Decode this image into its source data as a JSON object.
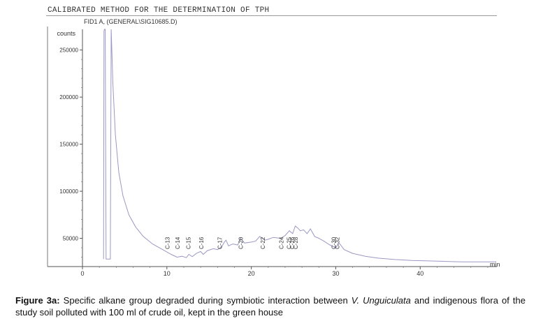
{
  "title": "CALIBRATED METHOD FOR THE DETERMINATION OF TPH",
  "chart_data": {
    "type": "line",
    "detector_label": "FID1 A,  (GENERAL\\SIG10685.D)",
    "ylabel": "counts",
    "xlabel": "min",
    "xlim": [
      0,
      49
    ],
    "ylim": [
      20000,
      272000
    ],
    "y_ticks": [
      50000,
      100000,
      150000,
      200000,
      250000
    ],
    "y_tick_labels": [
      "50000",
      "100000",
      "150000",
      "200000",
      "250000"
    ],
    "x_ticks": [
      0,
      10,
      20,
      30,
      40
    ],
    "x_tick_labels": [
      "0",
      "10",
      "20",
      "30",
      "40"
    ],
    "series": [
      {
        "name": "FID1 A",
        "x": [
          2.5,
          2.55,
          2.6,
          2.7,
          2.8,
          3.3,
          3.4,
          3.6,
          3.9,
          4.3,
          4.8,
          5.5,
          6.3,
          7.2,
          8.3,
          9.5,
          10.5,
          11.2,
          11.8,
          12.3,
          12.6,
          13.0,
          13.5,
          14.0,
          14.3,
          14.8,
          15.5,
          16.0,
          16.5,
          16.8,
          17.0,
          17.3,
          17.8,
          18.4,
          18.7,
          19.2,
          20.0,
          20.5,
          21.0,
          21.6,
          22.0,
          22.6,
          23.5,
          24.0,
          24.5,
          24.9,
          25.2,
          25.5,
          25.8,
          26.2,
          26.6,
          27.0,
          27.5,
          28.0,
          28.6,
          29.3,
          30.0,
          30.4,
          31.0,
          32.0,
          33.5,
          35.0,
          37.0,
          39.0,
          41.0,
          43.0,
          45.0,
          47.0,
          49.0
        ],
        "y": [
          28000,
          270000,
          272000,
          272000,
          28000,
          28000,
          272000,
          215000,
          160000,
          120000,
          95000,
          75000,
          62000,
          52000,
          44000,
          38000,
          33000,
          30000,
          31000,
          29500,
          33000,
          30500,
          34000,
          36000,
          33000,
          37000,
          39000,
          38000,
          41000,
          46000,
          48000,
          42000,
          44000,
          43000,
          50000,
          45000,
          46000,
          47000,
          52000,
          48000,
          49000,
          51000,
          50000,
          53000,
          58000,
          55000,
          63000,
          61000,
          58000,
          59000,
          55000,
          60000,
          52000,
          50000,
          47000,
          43000,
          40000,
          45000,
          38000,
          34000,
          31000,
          29000,
          27500,
          26500,
          26000,
          25500,
          25000,
          25000,
          25000
        ]
      }
    ],
    "peaks": [
      {
        "label": "C-13",
        "x": 10.3
      },
      {
        "label": "C-14",
        "x": 11.5
      },
      {
        "label": "C-15",
        "x": 12.8
      },
      {
        "label": "C-16",
        "x": 14.3
      },
      {
        "label": "C-17",
        "x": 16.5
      },
      {
        "label": "C-20",
        "x": 19.0
      },
      {
        "label": "C-22",
        "x": 21.6
      },
      {
        "label": "C-24",
        "x": 23.8
      },
      {
        "label": "C-25",
        "x": 24.7
      },
      {
        "label": "C-26",
        "x": 25.1
      },
      {
        "label": "C-28",
        "x": 25.5
      },
      {
        "label": "C-30",
        "x": 30.0
      },
      {
        "label": "C-32",
        "x": 30.4
      }
    ]
  },
  "caption": {
    "label": "Figure 3a:",
    "text_1": " Specific alkane group degraded during symbiotic interaction between ",
    "species": "V. Unguiculata",
    "text_2": " and indigenous flora of the study soil polluted with 100 ml of crude oil, kept in the green house"
  }
}
